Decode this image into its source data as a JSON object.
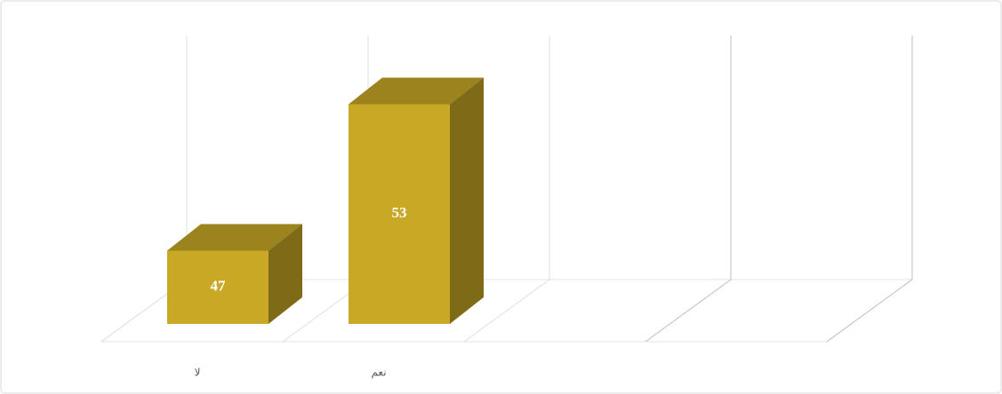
{
  "chart_data": {
    "type": "bar3d",
    "categories": [
      "لا",
      "نعم",
      null,
      null
    ],
    "values": [
      47,
      53,
      null,
      null
    ],
    "color": "#c9a825",
    "ylim": [
      44,
      54
    ]
  }
}
